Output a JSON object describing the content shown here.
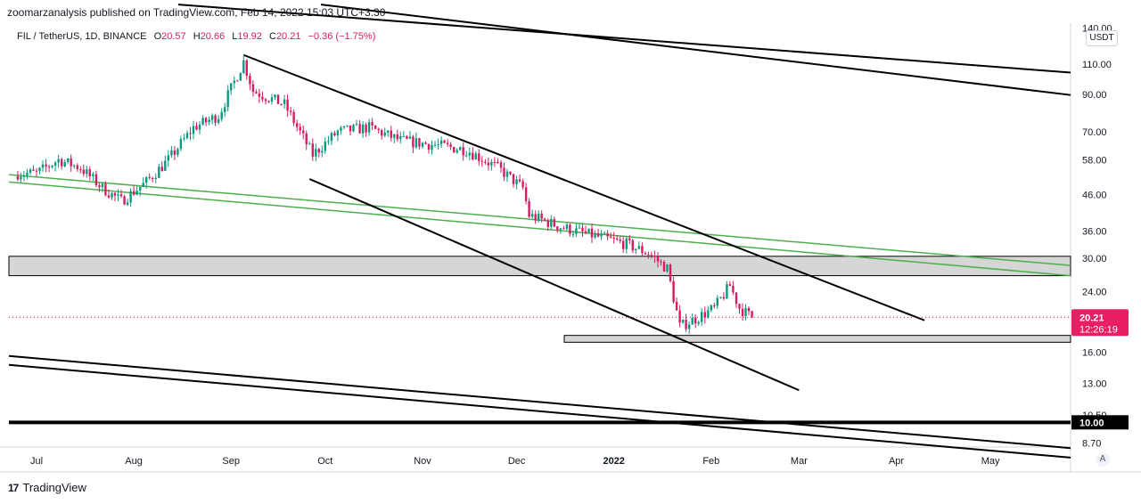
{
  "header": {
    "published": "zoomarzanalysis published on TradingView.com, Feb 14, 2022 15:03 UTC+3:30"
  },
  "legend": {
    "symbol": "FIL / TetherUS, 1D, BINANCE",
    "o_label": "O",
    "o_value": "20.57",
    "h_label": "H",
    "h_value": "20.66",
    "l_label": "L",
    "l_value": "19.92",
    "c_label": "C",
    "c_value": "20.21",
    "change": "−0.36 (−1.75%)"
  },
  "currency": "USDT",
  "auto_button": "A",
  "brand": {
    "logo": "17",
    "name": "TradingView"
  },
  "colors": {
    "up": "#089981",
    "down": "#d81b60",
    "price_badge": "#e91e63",
    "trend_green": "#4caf50",
    "zone_fill": "#d1d1d1"
  },
  "chart_data": {
    "type": "candlestick",
    "title": "FIL / TetherUS, 1D, BINANCE",
    "y_scale": "log",
    "y_ticks": [
      "140.00",
      "110.00",
      "90.00",
      "70.00",
      "58.00",
      "46.00",
      "36.00",
      "30.00",
      "24.00",
      "16.00",
      "13.00",
      "10.50",
      "8.70"
    ],
    "x_ticks": [
      "Jul",
      "Aug",
      "Sep",
      "Oct",
      "Nov",
      "Dec",
      "2022",
      "Feb",
      "Mar",
      "Apr",
      "May"
    ],
    "last_price": "20.21",
    "countdown": "12:26:19",
    "marked_level": "10.00",
    "series_close": [
      {
        "date": "2021-07-01",
        "close": 53
      },
      {
        "date": "2021-07-08",
        "close": 58
      },
      {
        "date": "2021-07-15",
        "close": 55
      },
      {
        "date": "2021-07-22",
        "close": 48
      },
      {
        "date": "2021-07-28",
        "close": 44
      },
      {
        "date": "2021-08-05",
        "close": 50
      },
      {
        "date": "2021-08-12",
        "close": 58
      },
      {
        "date": "2021-08-20",
        "close": 72
      },
      {
        "date": "2021-08-28",
        "close": 78
      },
      {
        "date": "2021-09-05",
        "close": 112
      },
      {
        "date": "2021-09-08",
        "close": 92
      },
      {
        "date": "2021-09-18",
        "close": 84
      },
      {
        "date": "2021-09-27",
        "close": 60
      },
      {
        "date": "2021-10-05",
        "close": 70
      },
      {
        "date": "2021-10-15",
        "close": 72
      },
      {
        "date": "2021-10-25",
        "close": 66
      },
      {
        "date": "2021-11-05",
        "close": 64
      },
      {
        "date": "2021-11-15",
        "close": 62
      },
      {
        "date": "2021-11-25",
        "close": 55
      },
      {
        "date": "2021-12-03",
        "close": 48
      },
      {
        "date": "2021-12-05",
        "close": 40
      },
      {
        "date": "2021-12-15",
        "close": 37
      },
      {
        "date": "2021-12-25",
        "close": 35
      },
      {
        "date": "2022-01-05",
        "close": 33
      },
      {
        "date": "2022-01-12",
        "close": 31
      },
      {
        "date": "2022-01-18",
        "close": 28
      },
      {
        "date": "2022-01-22",
        "close": 19
      },
      {
        "date": "2022-01-27",
        "close": 20
      },
      {
        "date": "2022-02-02",
        "close": 21.5
      },
      {
        "date": "2022-02-07",
        "close": 25
      },
      {
        "date": "2022-02-10",
        "close": 21.5
      },
      {
        "date": "2022-02-14",
        "close": 20.21
      }
    ]
  }
}
